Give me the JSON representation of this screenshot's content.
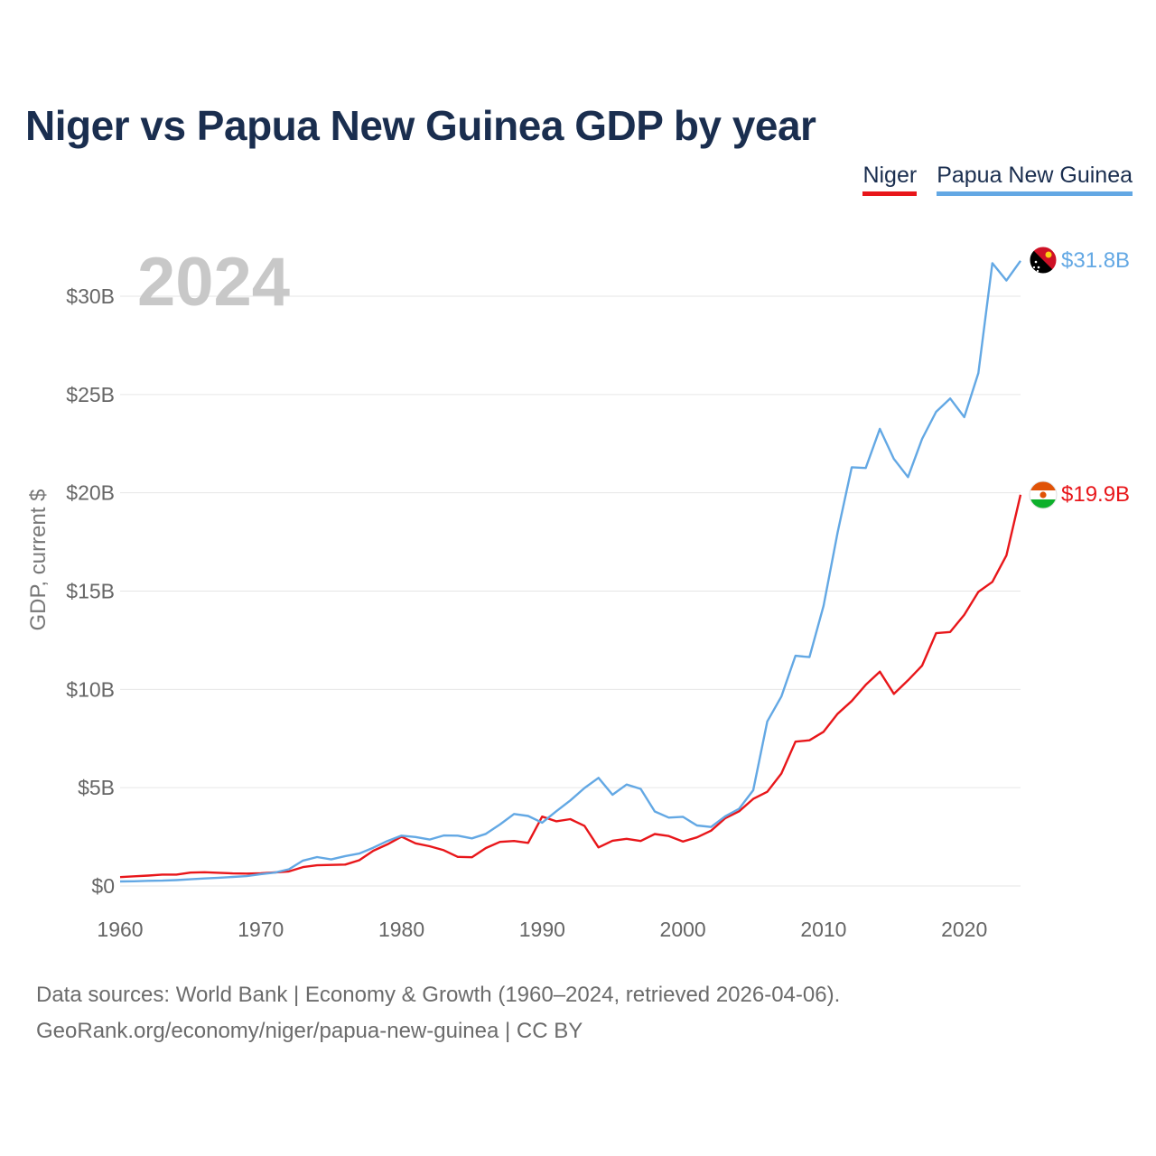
{
  "title": "Niger vs Papua New Guinea GDP by year",
  "legend": {
    "niger": "Niger",
    "png": "Papua New Guinea"
  },
  "year_label": "2024",
  "end_labels": {
    "png": "$31.8B",
    "niger": "$19.9B"
  },
  "source_line1": "Data sources: World Bank | Economy & Growth (1960–2024, retrieved 2026-04-06).",
  "source_line2": "GeoRank.org/economy/niger/papua-new-guinea | CC BY",
  "colors": {
    "niger": "#e8161a",
    "png": "#63a8e4",
    "grid": "#e6e6e6",
    "tick": "#666666",
    "year": "#c8c8c8"
  },
  "chart_data": {
    "type": "line",
    "title": "Niger vs Papua New Guinea GDP by year",
    "xlabel": "",
    "ylabel": "GDP, current $",
    "xlim": [
      1960,
      2024
    ],
    "ylim": [
      0,
      30
    ],
    "x_ticks": [
      1960,
      1970,
      1980,
      1990,
      2000,
      2010,
      2020
    ],
    "y_ticks": [
      0,
      5,
      10,
      15,
      20,
      25,
      30
    ],
    "y_tick_labels": [
      "$0",
      "$5B",
      "$10B",
      "$15B",
      "$20B",
      "$25B",
      "$30B"
    ],
    "units": "billions of current US$",
    "x": [
      1960,
      1961,
      1962,
      1963,
      1964,
      1965,
      1966,
      1967,
      1968,
      1969,
      1970,
      1971,
      1972,
      1973,
      1974,
      1975,
      1976,
      1977,
      1978,
      1979,
      1980,
      1981,
      1982,
      1983,
      1984,
      1985,
      1986,
      1987,
      1988,
      1989,
      1990,
      1991,
      1992,
      1993,
      1994,
      1995,
      1996,
      1997,
      1998,
      1999,
      2000,
      2001,
      2002,
      2003,
      2004,
      2005,
      2006,
      2007,
      2008,
      2009,
      2010,
      2011,
      2012,
      2013,
      2014,
      2015,
      2016,
      2017,
      2018,
      2019,
      2020,
      2021,
      2022,
      2023,
      2024
    ],
    "series": [
      {
        "name": "Niger",
        "color": "#e8161a",
        "values": [
          0.45,
          0.49,
          0.53,
          0.58,
          0.58,
          0.68,
          0.7,
          0.67,
          0.64,
          0.63,
          0.65,
          0.69,
          0.74,
          0.96,
          1.05,
          1.07,
          1.09,
          1.31,
          1.79,
          2.12,
          2.51,
          2.17,
          2.02,
          1.82,
          1.48,
          1.46,
          1.93,
          2.24,
          2.29,
          2.19,
          3.53,
          3.29,
          3.4,
          3.06,
          1.96,
          2.3,
          2.4,
          2.29,
          2.64,
          2.54,
          2.26,
          2.47,
          2.81,
          3.44,
          3.8,
          4.43,
          4.79,
          5.72,
          7.34,
          7.41,
          7.84,
          8.76,
          9.41,
          10.23,
          10.9,
          9.77,
          10.46,
          11.21,
          12.86,
          12.92,
          13.79,
          14.96,
          15.47,
          16.82,
          19.9
        ]
      },
      {
        "name": "Papua New Guinea",
        "color": "#63a8e4",
        "values": [
          0.23,
          0.24,
          0.26,
          0.27,
          0.3,
          0.34,
          0.38,
          0.42,
          0.46,
          0.5,
          0.6,
          0.68,
          0.85,
          1.29,
          1.47,
          1.35,
          1.52,
          1.65,
          1.95,
          2.29,
          2.56,
          2.49,
          2.36,
          2.57,
          2.56,
          2.42,
          2.65,
          3.13,
          3.66,
          3.56,
          3.22,
          3.8,
          4.35,
          4.98,
          5.5,
          4.64,
          5.16,
          4.94,
          3.79,
          3.48,
          3.52,
          3.08,
          3.0,
          3.54,
          3.93,
          4.87,
          8.37,
          9.64,
          11.71,
          11.64,
          14.25,
          17.99,
          21.3,
          21.26,
          23.25,
          21.72,
          20.8,
          22.74,
          24.12,
          24.8,
          23.85,
          26.09,
          31.68,
          30.8,
          31.8
        ]
      }
    ]
  }
}
